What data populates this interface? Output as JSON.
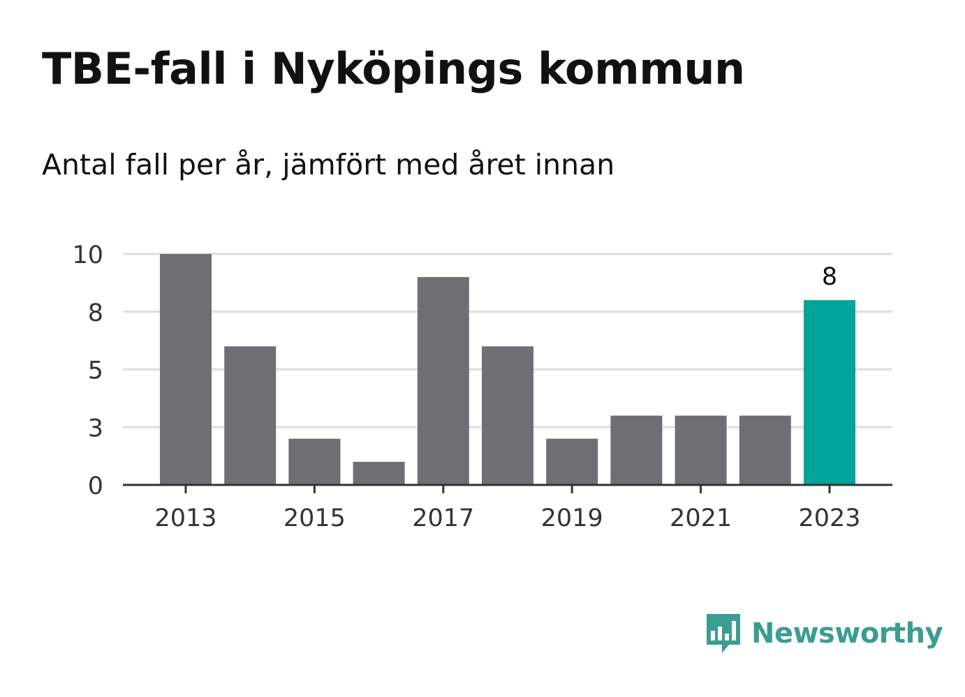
{
  "title": "TBE-fall i Nyköpings kommun",
  "subtitle": "Antal fall per år, jämfört med året innan",
  "brand": {
    "name": "Newsworthy",
    "icon": "newsworthy-logo-icon",
    "color": "#3b9c90"
  },
  "colors": {
    "bar": "#6f6e74",
    "highlight": "#00a499",
    "grid": "#dddddd",
    "axis": "#333333",
    "text": "#333333"
  },
  "chart_data": {
    "type": "bar",
    "categories": [
      "2013",
      "2014",
      "2015",
      "2016",
      "2017",
      "2018",
      "2019",
      "2020",
      "2021",
      "2022",
      "2023"
    ],
    "values": [
      10,
      6,
      2,
      1,
      9,
      6,
      2,
      3,
      3,
      3,
      8
    ],
    "highlight_index": 10,
    "data_labels": [
      {
        "index": 10,
        "text": "8"
      }
    ],
    "x_tick_labels": [
      "2013",
      "2015",
      "2017",
      "2019",
      "2021",
      "2023"
    ],
    "y_tick_labels": [
      "0",
      "3",
      "5",
      "8",
      "10"
    ],
    "y_ticks": [
      0,
      2.5,
      5,
      7.5,
      10
    ],
    "ylim": [
      0,
      10
    ],
    "grid": true,
    "xlabel": "",
    "ylabel": ""
  }
}
